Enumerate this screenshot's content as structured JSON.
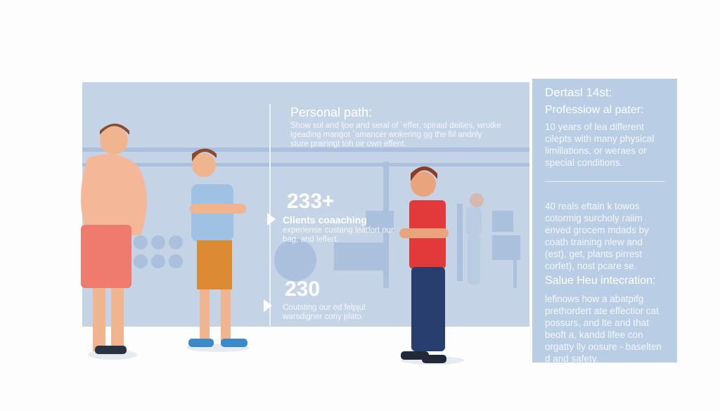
{
  "center": {
    "heading": "Personal path:",
    "body": "Show sul and ljoe and seral of ´effer, spiraid deities, wrotke lgeading mangot ´amancer wokering gg the fiil andnly sture prairingt toh oir own effent.",
    "stat1": {
      "value": "233+",
      "label": "Clients coaaching",
      "body": "experiense custang leatfort our bag, and leffert."
    },
    "stat2": {
      "value": "230",
      "body": "Coutsting our ed felpjul warsdigner cony plato."
    }
  },
  "side": {
    "title": "Dertasl 14st:",
    "heading": "Professiow al pater:",
    "body1": "10 years of lea different cilepts with many physical limillations, or weraes or special conditions.",
    "body2": "40 reals eftain k towos cotormig surcholy raiim enved grocem mdads by coath training nlew and (est), get, plants pirrest corfet), nost pcare se.",
    "heading2": "Salue Heu intecration:",
    "body3": "lefinows how a abatpifg prethordert ate effectior cat possurs, and lte and that beoft a, kandd lifee con orgatty lly oosure - baselten d and safety."
  },
  "colors": {
    "panel": "#c5d3e6",
    "sidebar": "#b9cde5",
    "shirt_red": "#e2393a",
    "shorts_orange": "#e08a32"
  }
}
